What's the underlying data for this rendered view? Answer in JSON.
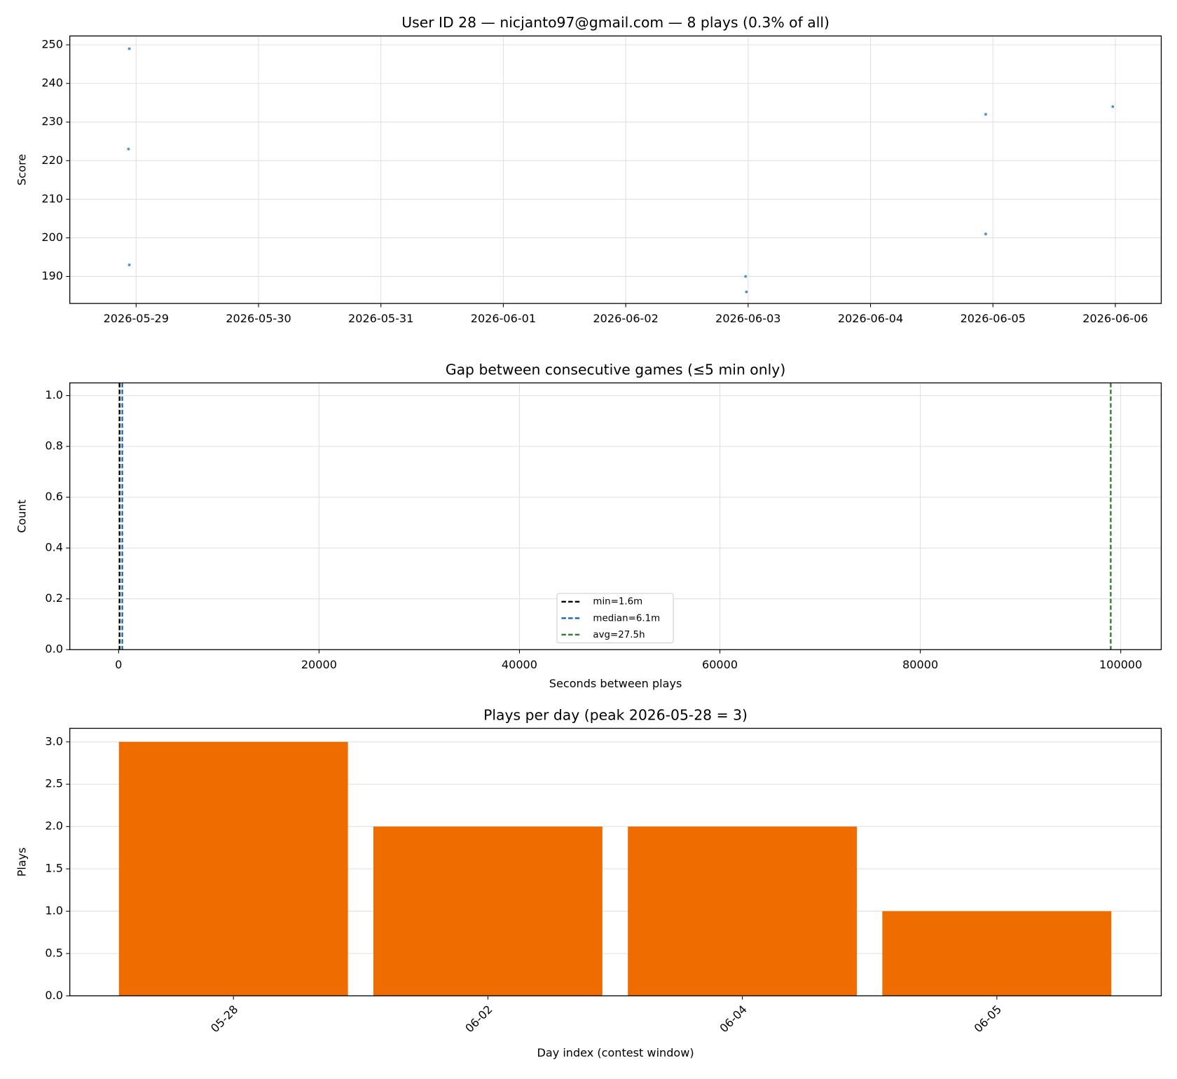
{
  "chart_data": [
    {
      "type": "scatter",
      "title": "User ID 28 — nicjanto97@gmail.com — 8 plays (0.3% of all)",
      "ylabel": "Score",
      "x": [
        "2026-05-28T22:40",
        "2026-05-28T22:30",
        "2026-05-28T22:40",
        "2026-06-02T23:30",
        "2026-06-02T23:40",
        "2026-06-04T22:35",
        "2026-06-04T22:35",
        "2026-06-05T23:30"
      ],
      "values": [
        249,
        223,
        193,
        190,
        186,
        232,
        201,
        234
      ],
      "color": "#4a90d0",
      "xlim": [
        "2026-05-28T11:00",
        "2026-06-06T09:00"
      ],
      "xticks": [
        "2026-05-29",
        "2026-05-30",
        "2026-05-31",
        "2026-06-01",
        "2026-06-02",
        "2026-06-03",
        "2026-06-04",
        "2026-06-05",
        "2026-06-06"
      ],
      "ylim": [
        183,
        252.3
      ],
      "yticks": [
        190,
        200,
        210,
        220,
        230,
        240,
        250
      ],
      "grid": true
    },
    {
      "type": "vlines",
      "title": "Gap between consecutive games (≤5 min only)",
      "xlabel": "Seconds between plays",
      "ylabel": "Count",
      "lines": [
        {
          "name": "min=1.6m",
          "color": "#000000",
          "x": 96
        },
        {
          "name": "median=6.1m",
          "color": "#1565c0",
          "x": 366
        },
        {
          "name": "avg=27.5h",
          "color": "#2e7d32",
          "x": 99000
        }
      ],
      "xlim": [
        -4870,
        104040
      ],
      "xticks": [
        0,
        20000,
        40000,
        60000,
        80000,
        100000
      ],
      "ylim": [
        0,
        1.05
      ],
      "yticks": [
        {
          "value": 0,
          "label": "0.0"
        },
        {
          "value": 0.2,
          "label": "0.2"
        },
        {
          "value": 0.4,
          "label": "0.4"
        },
        {
          "value": 0.6,
          "label": "0.6"
        },
        {
          "value": 0.8,
          "label": "0.8"
        },
        {
          "value": 1,
          "label": "1.0"
        }
      ],
      "grid": true,
      "legend": "lower center"
    },
    {
      "type": "bar",
      "title": "Plays per day (peak 2026-05-28 = 3)",
      "xlabel": "Day index (contest window)",
      "ylabel": "Plays",
      "categories": [
        "05-28",
        "06-02",
        "06-04",
        "06-05"
      ],
      "values": [
        3,
        2,
        2,
        1
      ],
      "color": "#ef6c00",
      "ylim": [
        0,
        3.16
      ],
      "yticks": [
        {
          "value": 0,
          "label": "0.0"
        },
        {
          "value": 0.5,
          "label": "0.5"
        },
        {
          "value": 1,
          "label": "1.0"
        },
        {
          "value": 1.5,
          "label": "1.5"
        },
        {
          "value": 2,
          "label": "2.0"
        },
        {
          "value": 2.5,
          "label": "2.5"
        },
        {
          "value": 3,
          "label": "3.0"
        }
      ],
      "grid": true
    }
  ]
}
